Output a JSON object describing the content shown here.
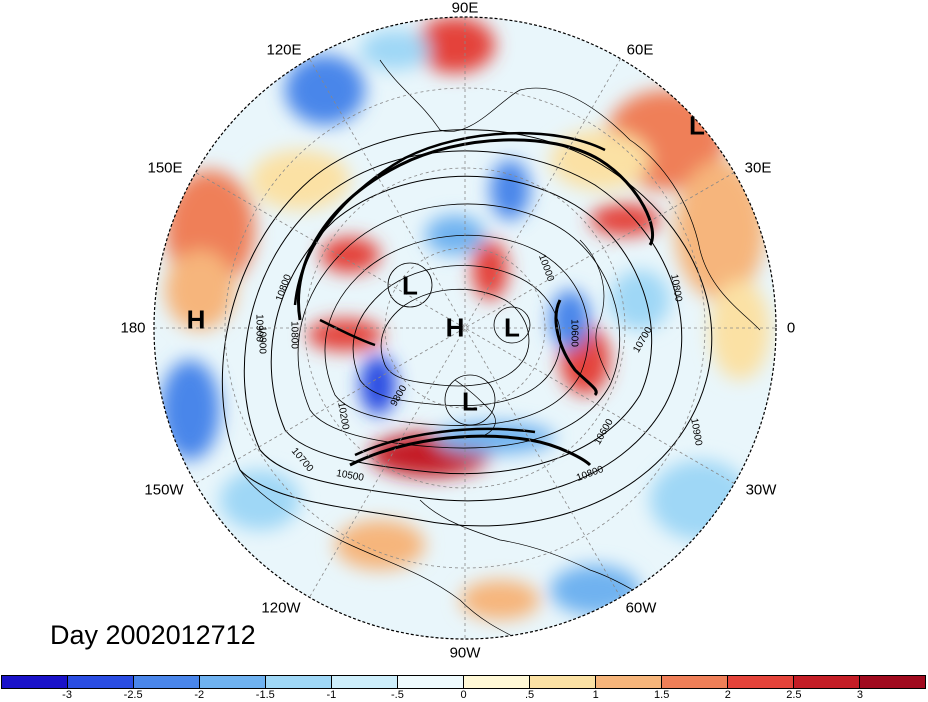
{
  "title": "Day 2002012712",
  "longitude_labels": [
    "90E",
    "60E",
    "30E",
    "0",
    "30W",
    "60W",
    "90W",
    "120W",
    "150W",
    "180",
    "150E",
    "120E"
  ],
  "pressure_centers": [
    "L",
    "L",
    "H",
    "L",
    "L",
    "H"
  ],
  "contour_labels": [
    "10000",
    "10800",
    "10900",
    "10800",
    "10800",
    "10700",
    "10900",
    "10600",
    "10200",
    "9800",
    "10700",
    "10500",
    "10800",
    "10600",
    "10900"
  ],
  "colorbar": {
    "ticks": [
      "-3",
      "-2.5",
      "-2",
      "-1.5",
      "-1",
      "-.5",
      "0",
      ".5",
      "1",
      "1.5",
      "2",
      "2.5",
      "3"
    ],
    "colors": [
      "#1a12c9",
      "#2a4de2",
      "#4a86ea",
      "#6fb2f0",
      "#9fd7f6",
      "#cdeefb",
      "#eefafd",
      "#fff8d6",
      "#fbe1a4",
      "#f6b57b",
      "#ef7f58",
      "#e4433a",
      "#c41d26",
      "#a00a1e"
    ]
  }
}
